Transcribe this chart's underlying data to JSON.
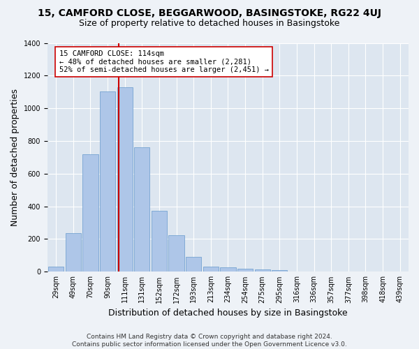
{
  "title_line1": "15, CAMFORD CLOSE, BEGGARWOOD, BASINGSTOKE, RG22 4UJ",
  "title_line2": "Size of property relative to detached houses in Basingstoke",
  "xlabel": "Distribution of detached houses by size in Basingstoke",
  "ylabel": "Number of detached properties",
  "footnote": "Contains HM Land Registry data © Crown copyright and database right 2024.\nContains public sector information licensed under the Open Government Licence v3.0.",
  "bins": [
    "29sqm",
    "49sqm",
    "70sqm",
    "90sqm",
    "111sqm",
    "131sqm",
    "152sqm",
    "172sqm",
    "193sqm",
    "213sqm",
    "234sqm",
    "254sqm",
    "275sqm",
    "295sqm",
    "316sqm",
    "336sqm",
    "357sqm",
    "377sqm",
    "398sqm",
    "418sqm",
    "439sqm"
  ],
  "bar_values": [
    30,
    235,
    720,
    1105,
    1130,
    760,
    375,
    225,
    90,
    30,
    25,
    20,
    15,
    10,
    0,
    0,
    0,
    0,
    0,
    0,
    0
  ],
  "bar_color": "#aec6e8",
  "bar_edge_color": "#6699cc",
  "vline_color": "#cc0000",
  "annotation_text": "15 CAMFORD CLOSE: 114sqm\n← 48% of detached houses are smaller (2,281)\n52% of semi-detached houses are larger (2,451) →",
  "annotation_box_color": "#ffffff",
  "annotation_box_edge": "#cc0000",
  "ylim": [
    0,
    1400
  ],
  "yticks": [
    0,
    200,
    400,
    600,
    800,
    1000,
    1200,
    1400
  ],
  "plot_bg_color": "#dde6f0",
  "fig_bg_color": "#eef2f7",
  "grid_color": "#ffffff",
  "title_fontsize": 10,
  "subtitle_fontsize": 9,
  "axis_label_fontsize": 9,
  "tick_fontsize": 7,
  "annotation_fontsize": 7.5,
  "footnote_fontsize": 6.5
}
